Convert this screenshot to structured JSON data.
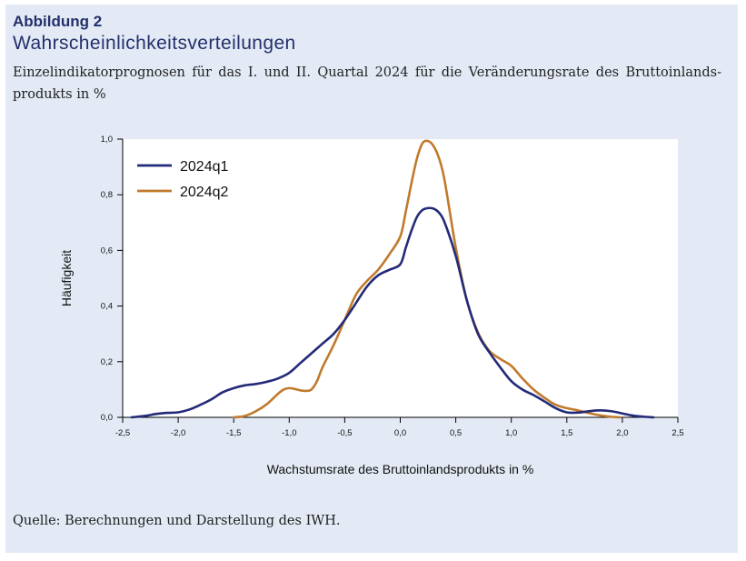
{
  "figure": {
    "number": "Abbildung 2",
    "title": "Wahrscheinlichkeitsverteilungen",
    "subtitle": "Einzelindikatorprognosen für das I. und II. Quartal 2024 für die Veränderungsrate des Bruttoinlands-produkts in %",
    "source": "Quelle: Berechnungen und Darstellung des IWH."
  },
  "colors": {
    "panel_background": "#e3eaf5",
    "title_text": "#23306b",
    "series_2024q1": "#232a78",
    "series_2024q2": "#c07a2c"
  },
  "chart_data": {
    "type": "line",
    "xlabel": "Wachstumsrate des Bruttoinlandsprodukts in %",
    "ylabel": "Häufigkeit",
    "xlim": [
      -2.5,
      2.5
    ],
    "ylim": [
      0.0,
      1.0
    ],
    "xticks": [
      -2.5,
      -2.0,
      -1.5,
      -1.0,
      -0.5,
      0.0,
      0.5,
      1.0,
      1.5,
      2.0,
      2.5
    ],
    "xtick_labels": [
      "-2,5",
      "-2,0",
      "-1,5",
      "-1,0",
      "-0,5",
      "0,0",
      "0,5",
      "1,0",
      "1,5",
      "2,0",
      "2,5"
    ],
    "yticks": [
      0.0,
      0.2,
      0.4,
      0.6,
      0.8,
      1.0
    ],
    "ytick_labels": [
      "0,0",
      "0,2",
      "0,4",
      "0,6",
      "0,8",
      "1,0"
    ],
    "grid": false,
    "legend_position": "top-left",
    "series": [
      {
        "name": "2024q1",
        "x": [
          -2.42,
          -2.3,
          -2.2,
          -2.1,
          -2.0,
          -1.9,
          -1.8,
          -1.7,
          -1.6,
          -1.5,
          -1.4,
          -1.3,
          -1.2,
          -1.1,
          -1.0,
          -0.9,
          -0.8,
          -0.7,
          -0.6,
          -0.5,
          -0.4,
          -0.3,
          -0.2,
          -0.1,
          0.0,
          0.05,
          0.1,
          0.15,
          0.2,
          0.25,
          0.3,
          0.35,
          0.4,
          0.5,
          0.6,
          0.7,
          0.8,
          0.9,
          1.0,
          1.1,
          1.2,
          1.3,
          1.4,
          1.5,
          1.6,
          1.7,
          1.8,
          1.9,
          2.0,
          2.1,
          2.2,
          2.28
        ],
        "y": [
          0.0,
          0.005,
          0.012,
          0.016,
          0.018,
          0.028,
          0.045,
          0.065,
          0.09,
          0.105,
          0.115,
          0.12,
          0.128,
          0.14,
          0.16,
          0.195,
          0.23,
          0.265,
          0.3,
          0.35,
          0.41,
          0.47,
          0.51,
          0.53,
          0.55,
          0.61,
          0.67,
          0.72,
          0.745,
          0.752,
          0.75,
          0.735,
          0.7,
          0.58,
          0.42,
          0.3,
          0.235,
          0.18,
          0.13,
          0.1,
          0.08,
          0.057,
          0.033,
          0.018,
          0.017,
          0.022,
          0.025,
          0.022,
          0.014,
          0.006,
          0.002,
          0.0
        ]
      },
      {
        "name": "2024q2",
        "x": [
          -1.5,
          -1.4,
          -1.3,
          -1.2,
          -1.1,
          -1.05,
          -1.0,
          -0.95,
          -0.9,
          -0.85,
          -0.8,
          -0.75,
          -0.7,
          -0.6,
          -0.5,
          -0.4,
          -0.3,
          -0.2,
          -0.1,
          0.0,
          0.05,
          0.1,
          0.15,
          0.2,
          0.25,
          0.3,
          0.35,
          0.4,
          0.5,
          0.6,
          0.7,
          0.8,
          0.9,
          1.0,
          1.1,
          1.2,
          1.3,
          1.4,
          1.5,
          1.6,
          1.7,
          1.8,
          1.9,
          1.98
        ],
        "y": [
          0.0,
          0.005,
          0.022,
          0.048,
          0.085,
          0.1,
          0.105,
          0.102,
          0.097,
          0.095,
          0.1,
          0.13,
          0.18,
          0.26,
          0.35,
          0.44,
          0.49,
          0.53,
          0.585,
          0.65,
          0.74,
          0.84,
          0.93,
          0.985,
          0.993,
          0.975,
          0.93,
          0.85,
          0.61,
          0.42,
          0.305,
          0.24,
          0.21,
          0.185,
          0.14,
          0.1,
          0.07,
          0.045,
          0.033,
          0.025,
          0.015,
          0.007,
          0.002,
          0.0
        ]
      }
    ]
  }
}
